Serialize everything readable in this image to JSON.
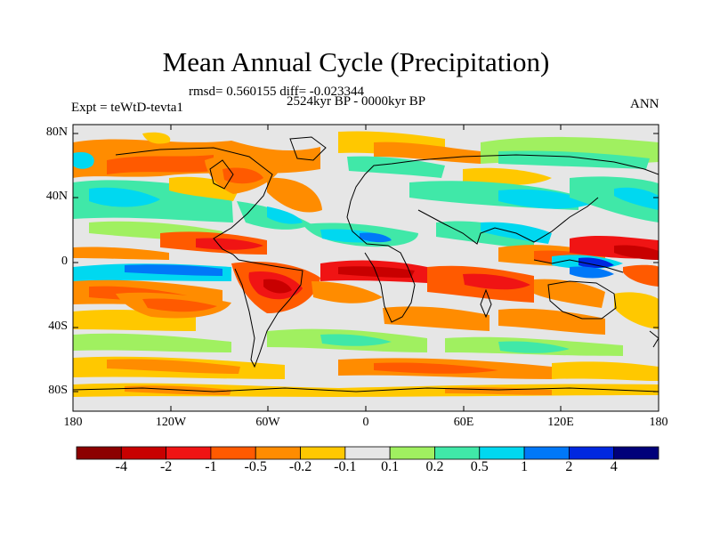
{
  "title": "Mean Annual Cycle (Precipitation)",
  "stats": "rmsd= 0.560155 diff= -0.023344",
  "period": "2524kyr BP - 0000kyr BP",
  "experiment": "Expt = teWtD-tevta1",
  "season": "ANN",
  "lat_ticks": [
    "80N",
    "40N",
    "0",
    "40S",
    "80S"
  ],
  "lon_ticks": [
    "180",
    "120W",
    "60W",
    "0",
    "60E",
    "120E",
    "180"
  ],
  "colorbar": {
    "labels": [
      "-4",
      "-2",
      "-1",
      "-0.5",
      "-0.2",
      "-0.1",
      "0.1",
      "0.2",
      "0.5",
      "1",
      "2",
      "4"
    ],
    "colors": [
      "#8c0000",
      "#c80000",
      "#f01414",
      "#ff5a00",
      "#ff8c00",
      "#ffc800",
      "#e6e6e6",
      "#a0f060",
      "#40e8a8",
      "#00d8f0",
      "#0078f8",
      "#0028e0",
      "#00007a"
    ]
  }
}
